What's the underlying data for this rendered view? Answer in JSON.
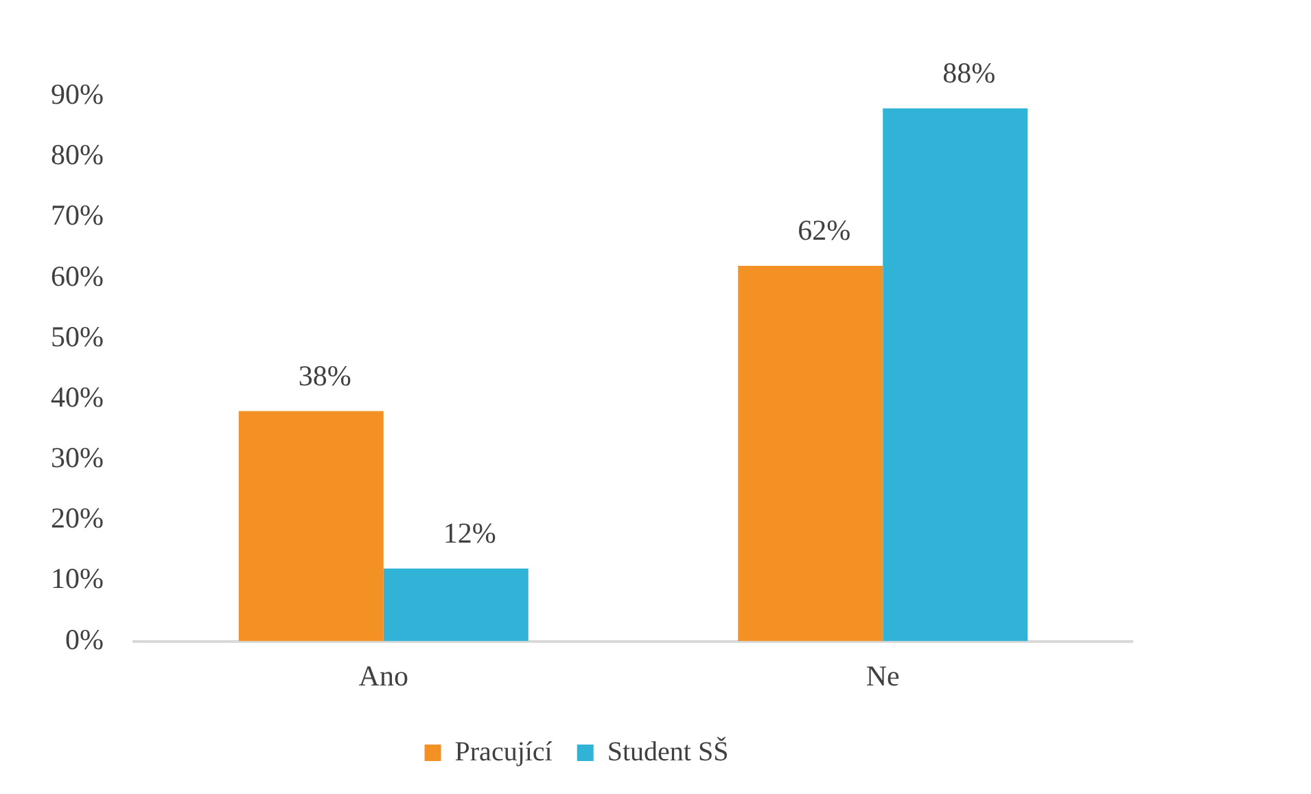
{
  "chart_data": {
    "type": "bar",
    "categories": [
      "Ano",
      "Ne"
    ],
    "series": [
      {
        "name": "Pracující",
        "color": "#f39125",
        "values": [
          38,
          62
        ],
        "value_labels": [
          "38%",
          "62%"
        ]
      },
      {
        "name": "Student SŠ",
        "color": "#31b3d8",
        "values": [
          12,
          88
        ],
        "value_labels": [
          "12%",
          "88%"
        ]
      }
    ],
    "ylim": [
      0,
      90
    ],
    "yticks": [
      {
        "value": 0,
        "label": "0%"
      },
      {
        "value": 10,
        "label": "10%"
      },
      {
        "value": 20,
        "label": "20%"
      },
      {
        "value": 30,
        "label": "30%"
      },
      {
        "value": 40,
        "label": "40%"
      },
      {
        "value": 50,
        "label": "50%"
      },
      {
        "value": 60,
        "label": "60%"
      },
      {
        "value": 70,
        "label": "70%"
      },
      {
        "value": 80,
        "label": "80%"
      },
      {
        "value": 90,
        "label": "90%"
      }
    ],
    "grid": false,
    "legend": "bottom"
  }
}
